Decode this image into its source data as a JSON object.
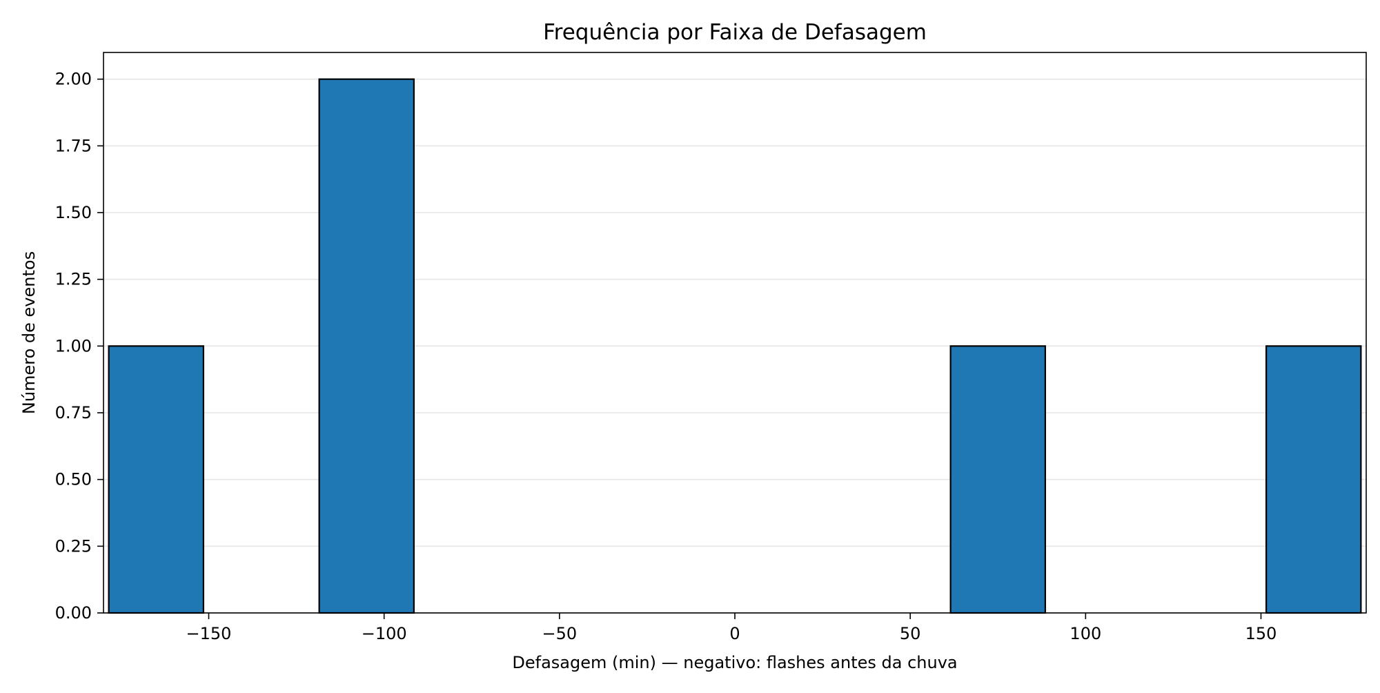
{
  "chart_data": {
    "type": "bar",
    "title": "Frequência por Faixa de Defasagem",
    "xlabel": "Defasagem (min)  —  negativo: flashes antes da chuva",
    "ylabel": "Número de eventos",
    "xlim": [
      -180,
      180
    ],
    "ylim": [
      0,
      2.1
    ],
    "x_ticks": [
      -150,
      -100,
      -50,
      0,
      50,
      100,
      150
    ],
    "x_tick_labels": [
      "−150",
      "−100",
      "−50",
      "0",
      "50",
      "100",
      "150"
    ],
    "y_ticks": [
      0,
      0.25,
      0.5,
      0.75,
      1.0,
      1.25,
      1.5,
      1.75,
      2.0
    ],
    "y_tick_labels": [
      "0.00",
      "0.25",
      "0.50",
      "0.75",
      "1.00",
      "1.25",
      "1.50",
      "1.75",
      "2.00"
    ],
    "bins": [
      {
        "start": -178.5,
        "end": -151.5,
        "value": 1
      },
      {
        "start": -118.5,
        "end": -91.5,
        "value": 2
      },
      {
        "start": 61.5,
        "end": 88.5,
        "value": 1
      },
      {
        "start": 151.5,
        "end": 178.5,
        "value": 1
      }
    ],
    "grid": "horizontal",
    "colors": {
      "bar": "#1f77b4",
      "bar_edge": "#000000",
      "grid": "#e6e6e6"
    }
  }
}
